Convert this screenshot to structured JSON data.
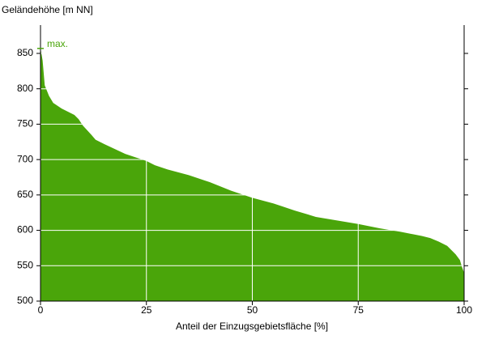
{
  "chart_data": {
    "type": "area",
    "title": "Geländehöhe [m NN]",
    "x_label": "Anteil der Einzugsgebietsfläche [%]",
    "annotation": "max.",
    "color": "#4aa50a",
    "grid": true,
    "grid_color": "#ffffff",
    "x": [
      0,
      0.5,
      1,
      2,
      3,
      5,
      8,
      9,
      10,
      12,
      13,
      15,
      20,
      25,
      27,
      30,
      35,
      40,
      45,
      50,
      55,
      60,
      65,
      70,
      75,
      80,
      85,
      90,
      92,
      94,
      96,
      98,
      99,
      99.5,
      100
    ],
    "values": [
      857,
      840,
      805,
      790,
      780,
      772,
      763,
      757,
      748,
      735,
      728,
      722,
      708,
      698,
      692,
      686,
      678,
      668,
      656,
      646,
      638,
      628,
      619,
      614,
      609,
      603,
      598,
      592,
      589,
      584,
      578,
      566,
      558,
      548,
      540
    ],
    "xlim": [
      0,
      100
    ],
    "xticks": [
      0,
      25,
      50,
      75,
      100
    ],
    "ylim": [
      500,
      890
    ],
    "yticks": [
      500,
      550,
      600,
      650,
      700,
      750,
      800,
      850
    ]
  }
}
